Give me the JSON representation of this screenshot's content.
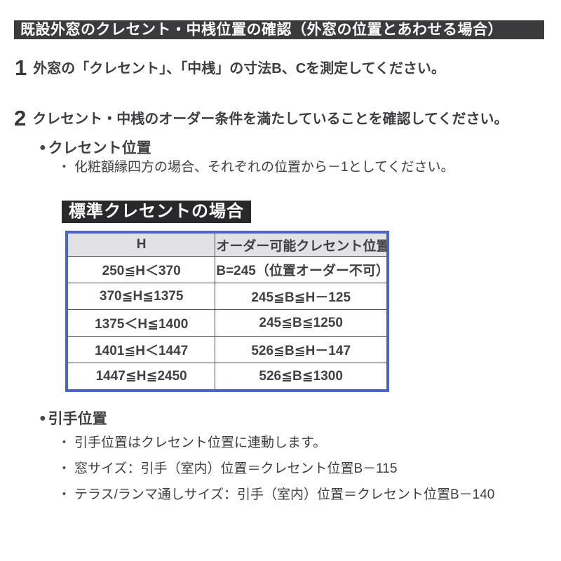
{
  "title_bar": {
    "text": "既設外窓のクレセント・中桟位置の確認（外窓の位置とあわせる場合）"
  },
  "steps": [
    {
      "number": "1",
      "text": "外窓の「クレセント」、「中桟」の寸法B、Cを測定してください。"
    },
    {
      "number": "2",
      "text": "クレセント・中桟のオーダー条件を満たしていることを確認してください。"
    }
  ],
  "icons": {
    "bullet": "●",
    "sub_bullet": "・"
  },
  "crescent_section": {
    "heading": "クレセント位置",
    "note": "化粧額縁四方の場合、それぞれの位置から－1としてください。",
    "table_label": "標準クレセントの場合",
    "table": {
      "headers": [
        "H",
        "オーダー可能クレセント位置"
      ],
      "rows": [
        [
          "250≦H＜370",
          "B=245（位置オーダー不可）"
        ],
        [
          "370≦H≦1375",
          "245≦B≦H－125"
        ],
        [
          "1375＜H≦1400",
          "245≦B≦1250"
        ],
        [
          "1401≦H＜1447",
          "526≦B≦H－147"
        ],
        [
          "1447≦H≦2450",
          "526≦B≦1300"
        ]
      ]
    }
  },
  "handle_section": {
    "heading": "引手位置",
    "notes": [
      "引手位置はクレセント位置に連動します。",
      "窓サイズ：引手（室内）位置＝クレセント位置B－115",
      "テラス/ランマ通しサイズ：引手（室内）位置＝クレセント位置B－140"
    ]
  },
  "colors": {
    "title_bar_bg": "#3b3b3d",
    "label_bg": "#29292b",
    "table_border": "#4b64c8",
    "table_header_bg": "#e2e2e4",
    "body_text": "#3e3e42"
  }
}
